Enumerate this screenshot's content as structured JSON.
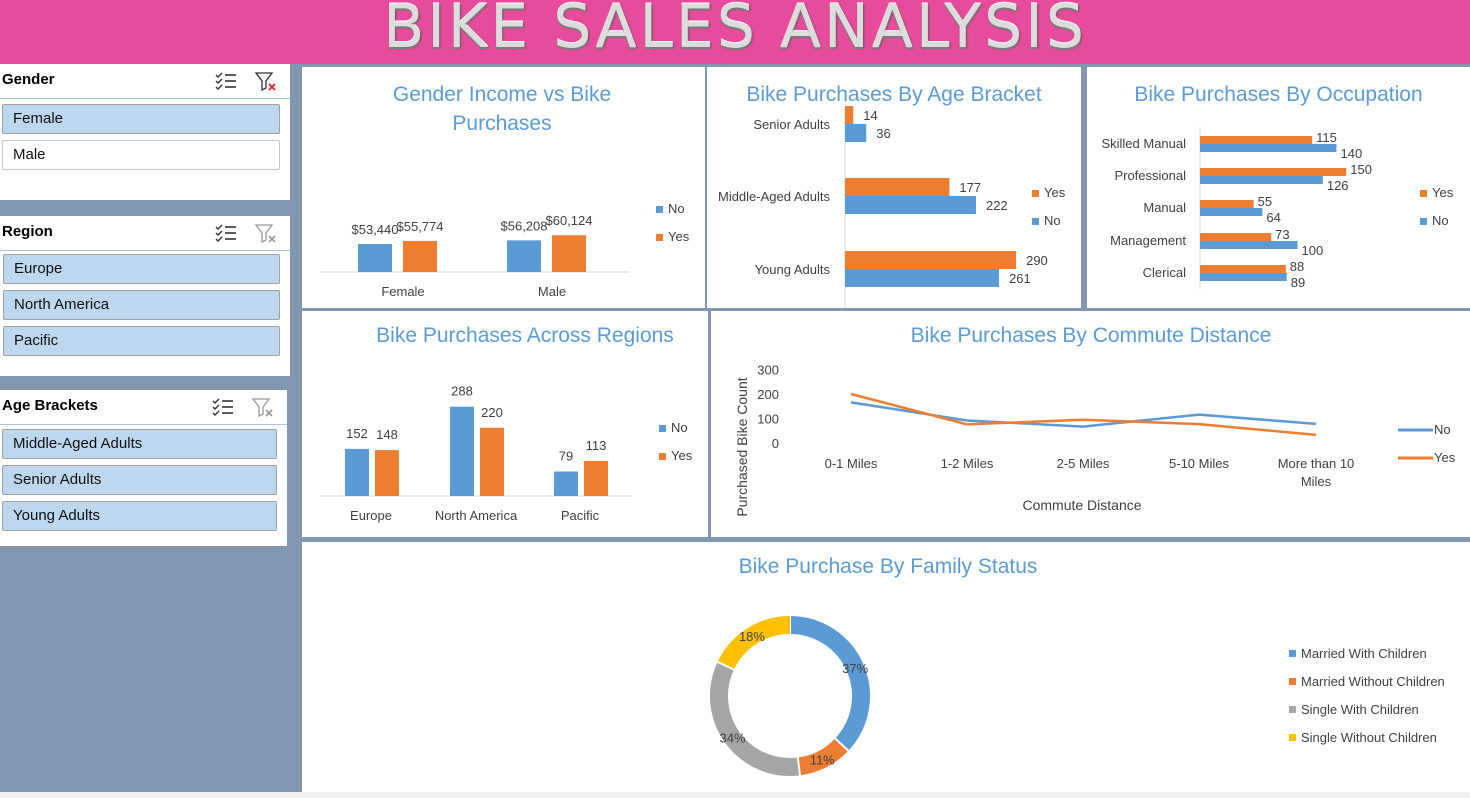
{
  "banner": {
    "title": "BIKE SALES ANALYSIS"
  },
  "colors": {
    "no": "#5b9bd5",
    "yes": "#ed7d31",
    "gray": "#a5a5a5",
    "gold": "#ffc000",
    "title": "#5b9bd5",
    "banner": "#e74c9c",
    "sidebar": "#8497b0"
  },
  "slicers": {
    "gender": {
      "title": "Gender",
      "items": [
        {
          "label": "Female",
          "selected": true
        },
        {
          "label": "Male",
          "selected": false
        }
      ]
    },
    "region": {
      "title": "Region",
      "items": [
        {
          "label": "Europe",
          "selected": true
        },
        {
          "label": "North America",
          "selected": true
        },
        {
          "label": "Pacific",
          "selected": true
        }
      ]
    },
    "age": {
      "title": "Age Brackets",
      "items": [
        {
          "label": "Middle-Aged Adults",
          "selected": true
        },
        {
          "label": "Senior Adults",
          "selected": true
        },
        {
          "label": "Young Adults",
          "selected": true
        }
      ]
    }
  },
  "chart_data": [
    {
      "id": "gender-income",
      "type": "bar",
      "title": "Gender Income vs Bike Purchases",
      "categories": [
        "Female",
        "Male"
      ],
      "series": [
        {
          "name": "No",
          "values": [
            53440,
            56208
          ],
          "labels": [
            "$53,440",
            "$56,208"
          ]
        },
        {
          "name": "Yes",
          "values": [
            55774,
            60124
          ],
          "labels": [
            "$55,774",
            "$60,124"
          ]
        }
      ],
      "legend": "right"
    },
    {
      "id": "age-bracket",
      "type": "bar",
      "orientation": "horizontal",
      "title": "Bike Purchases By Age Bracket",
      "categories": [
        "Senior Adults",
        "Middle-Aged Adults",
        "Young Adults"
      ],
      "series": [
        {
          "name": "Yes",
          "values": [
            14,
            177,
            290
          ]
        },
        {
          "name": "No",
          "values": [
            36,
            222,
            261
          ]
        }
      ],
      "legend": "right"
    },
    {
      "id": "occupation",
      "type": "bar",
      "orientation": "horizontal",
      "title": "Bike Purchases By Occupation",
      "categories": [
        "Skilled Manual",
        "Professional",
        "Manual",
        "Management",
        "Clerical"
      ],
      "series": [
        {
          "name": "Yes",
          "values": [
            115,
            150,
            55,
            73,
            88
          ]
        },
        {
          "name": "No",
          "values": [
            140,
            126,
            64,
            100,
            89
          ]
        }
      ],
      "legend": "right"
    },
    {
      "id": "regions",
      "type": "bar",
      "title": "Bike Purchases Across Regions",
      "categories": [
        "Europe",
        "North America",
        "Pacific"
      ],
      "series": [
        {
          "name": "No",
          "values": [
            152,
            288,
            79
          ]
        },
        {
          "name": "Yes",
          "values": [
            148,
            220,
            113
          ]
        }
      ],
      "legend": "right"
    },
    {
      "id": "commute",
      "type": "line",
      "title": "Bike Purchases By Commute Distance",
      "xlabel": "Commute Distance",
      "ylabel": "Purchased Bike Count",
      "categories": [
        "0-1 Miles",
        "1-2 Miles",
        "2-5 Miles",
        "5-10 Miles",
        "More than 10 Miles"
      ],
      "yticks": [
        0,
        100,
        200,
        300
      ],
      "ylim": [
        0,
        300
      ],
      "series": [
        {
          "name": "No",
          "values": [
            166,
            92,
            67,
            116,
            78
          ]
        },
        {
          "name": "Yes",
          "values": [
            200,
            76,
            95,
            77,
            33
          ]
        }
      ],
      "legend": "right"
    },
    {
      "id": "family",
      "type": "pie",
      "donut": true,
      "title": "Bike Purchase By Family Status",
      "categories": [
        "Married With Children",
        "Married Without Children",
        "Single With Children",
        "Single Without Children"
      ],
      "values": [
        37,
        11,
        34,
        18
      ],
      "labels": [
        "37%",
        "11%",
        "34%",
        "18%"
      ],
      "legend": "right"
    }
  ]
}
